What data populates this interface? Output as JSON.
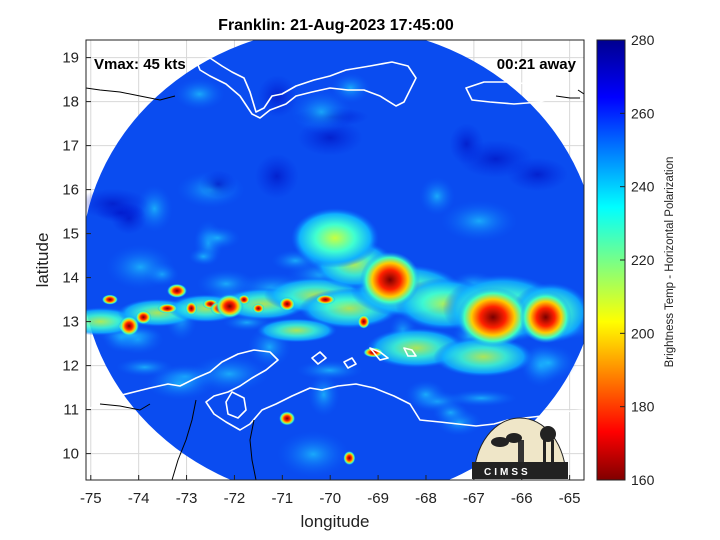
{
  "chart_data": {
    "type": "heatmap",
    "title": "Franklin: 21-Aug-2023 17:45:00",
    "xlabel": "longitude",
    "ylabel": "latitude",
    "xlim": [
      -75.1,
      -64.7
    ],
    "ylim": [
      9.4,
      19.4
    ],
    "xticks": [
      "-75",
      "-74",
      "-73",
      "-72",
      "-71",
      "-70",
      "-69",
      "-68",
      "-67",
      "-66",
      "-65"
    ],
    "yticks": [
      "10",
      "11",
      "12",
      "13",
      "14",
      "15",
      "16",
      "17",
      "18",
      "19"
    ],
    "grid": true,
    "annotations": {
      "vmax": "Vmax: 45 kts",
      "away": "00:21 away"
    },
    "colorbar": {
      "label": "Brightness Temp - Horizontal Polarization",
      "range": [
        160,
        280
      ],
      "ticks": [
        "160",
        "180",
        "200",
        "220",
        "240",
        "260",
        "280"
      ],
      "colormap": "jet"
    },
    "swath": {
      "center_lon": -69.8,
      "center_lat": 14.3,
      "radius_deg": 5.4,
      "background_value": 262
    },
    "features": [
      {
        "name": "main-convection",
        "lon": -68.75,
        "lat": 13.95,
        "value": 172
      },
      {
        "name": "convection-east",
        "lon": -66.6,
        "lat": 13.1,
        "value": 168
      },
      {
        "name": "convection-far-east",
        "lon": -65.5,
        "lat": 13.1,
        "value": 170
      },
      {
        "name": "storm-center-band",
        "lon": -69.9,
        "lat": 14.9,
        "value": 232
      },
      {
        "name": "band-west-1",
        "lon": -72.1,
        "lat": 13.35,
        "value": 190
      },
      {
        "name": "band-west-2",
        "lon": -74.2,
        "lat": 12.9,
        "value": 198
      }
    ],
    "logo_text": "CIMSS"
  },
  "colors": {
    "coastline": "#ffffff",
    "coastline_outside": "#000000",
    "grid": "#d8d8d8"
  }
}
